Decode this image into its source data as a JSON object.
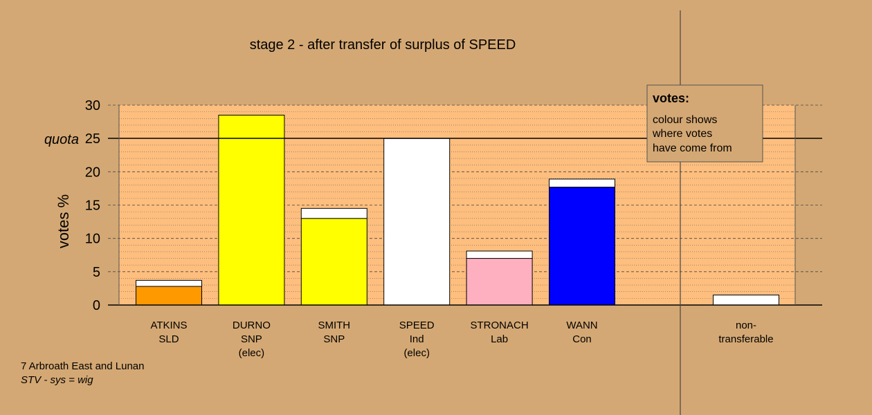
{
  "chart_data": {
    "type": "bar",
    "title": "stage 2 - after transfer of surplus of SPEED",
    "ylabel": "votes %",
    "ylim": [
      0,
      30
    ],
    "yticks": [
      0,
      5,
      10,
      15,
      20,
      25,
      30
    ],
    "quota": 25,
    "quota_label": "quota",
    "candidates": [
      {
        "name": "ATKINS",
        "party": "SLD",
        "status": "",
        "base": 2.8,
        "transfer": 0.9,
        "color": "#ff9900"
      },
      {
        "name": "DURNO",
        "party": "SNP",
        "status": "(elec)",
        "base": 28.5,
        "transfer": 0,
        "color": "#ffff00"
      },
      {
        "name": "SMITH",
        "party": "SNP",
        "status": "",
        "base": 13.0,
        "transfer": 1.5,
        "color": "#ffff00"
      },
      {
        "name": "SPEED",
        "party": "Ind",
        "status": "(elec)",
        "base": 25.0,
        "transfer": 0,
        "color": "#ffffff"
      },
      {
        "name": "STRONACH",
        "party": "Lab",
        "status": "",
        "base": 7.0,
        "transfer": 1.1,
        "color": "#ffb0c0"
      },
      {
        "name": "WANN",
        "party": "Con",
        "status": "",
        "base": 17.7,
        "transfer": 1.2,
        "color": "#0000ff"
      }
    ],
    "nontransferable": {
      "label_line1": "non-",
      "label_line2": "transferable",
      "value": 1.5,
      "color": "#ffffff"
    },
    "legend": {
      "title": "votes:",
      "lines": [
        "colour shows",
        "where votes",
        "have come from"
      ]
    }
  },
  "footer": {
    "line1": "7 Arbroath East and Lunan",
    "line2": "STV - sys = wig"
  },
  "colors": {
    "page_bg": "#d4a874",
    "plot_bg": "#fdbe7e",
    "legend_bg": "#d4a874",
    "transfer": "#ffffff"
  }
}
